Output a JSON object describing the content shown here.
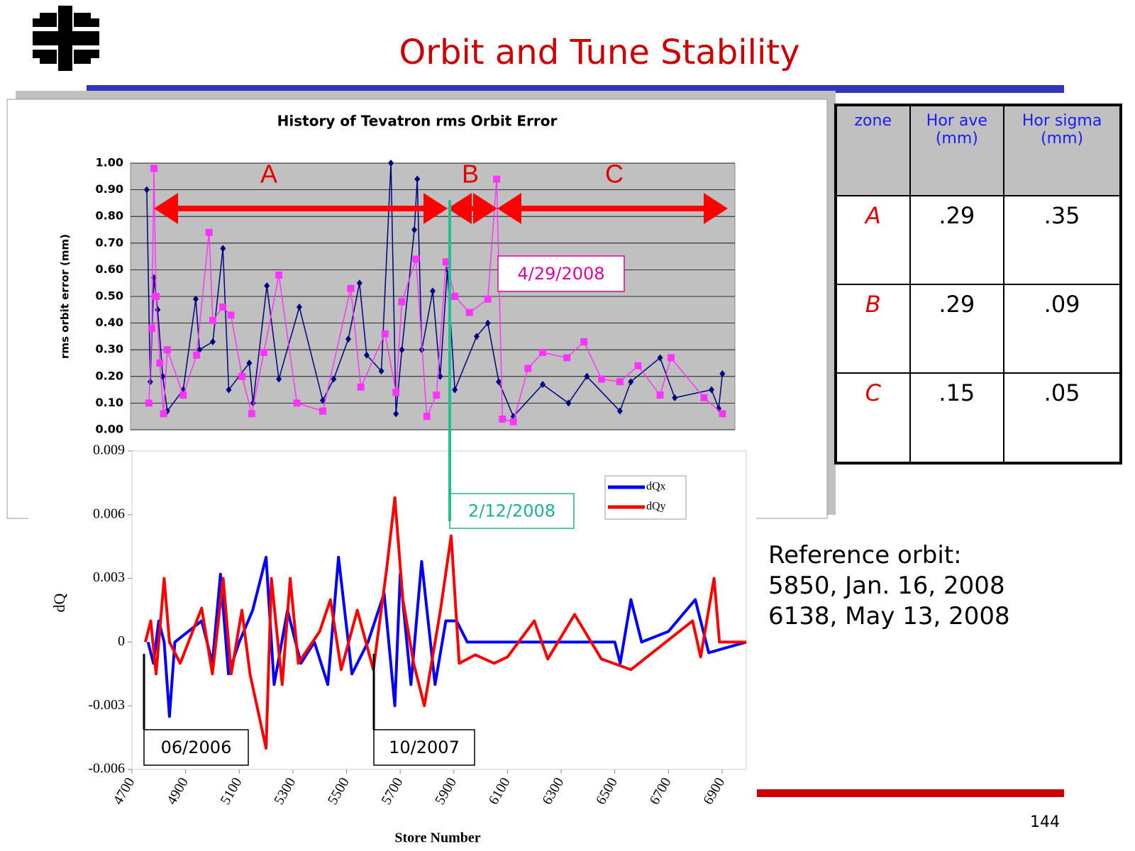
{
  "slide": {
    "title": "Orbit and Tune Stability",
    "page_number": "144"
  },
  "table": {
    "header": [
      "zone",
      "Hor ave (mm)",
      "Hor sigma (mm)"
    ],
    "rows": [
      [
        "A",
        ".29",
        ".35"
      ],
      [
        "B",
        ".29",
        ".09"
      ],
      [
        "C",
        ".15",
        ".05"
      ]
    ]
  },
  "reference": [
    "Reference orbit:",
    "5850, Jan. 16, 2008",
    "6138, May 13, 2008"
  ],
  "chart_data": [
    {
      "type": "line",
      "title": "History of Tevatron rms Orbit Error",
      "y_label": "rms orbit error (mm)",
      "xlim": [
        4700,
        6970
      ],
      "ylim": [
        0,
        1
      ],
      "yticks": [
        {
          "value": 0,
          "label": "0.00"
        },
        {
          "value": 0.1,
          "label": "0.10"
        },
        {
          "value": 0.2,
          "label": "0.20"
        },
        {
          "value": 0.3,
          "label": "0.30"
        },
        {
          "value": 0.4,
          "label": "0.40"
        },
        {
          "value": 0.5,
          "label": "0.50"
        },
        {
          "value": 0.6,
          "label": "0.60"
        },
        {
          "value": 0.7,
          "label": "0.70"
        },
        {
          "value": 0.8,
          "label": "0.80"
        },
        {
          "value": 0.9,
          "label": "0.90"
        },
        {
          "value": 1,
          "label": "1.00"
        }
      ],
      "grid": true,
      "annotations": [
        "A",
        "B",
        "C",
        "4/29/2008"
      ],
      "series": [
        {
          "color": "#000080",
          "marker": "diamond",
          "x": [
            4761,
            4774,
            4788,
            4802,
            4821,
            4838,
            4898,
            4945,
            4959,
            5009,
            5047,
            5069,
            5146,
            5160,
            5212,
            5257,
            5334,
            5422,
            5463,
            5518,
            5560,
            5587,
            5642,
            5678,
            5697,
            5719,
            5766,
            5777,
            5794,
            5835,
            5863,
            5890,
            5918,
            6000,
            6042,
            6083,
            6138,
            6248,
            6345,
            6414,
            6538,
            6579,
            6689,
            6744,
            6882,
            6909,
            6923
          ],
          "values": [
            0.9,
            0.18,
            0.57,
            0.45,
            0.2,
            0.07,
            0.15,
            0.49,
            0.3,
            0.33,
            0.68,
            0.15,
            0.25,
            0.1,
            0.54,
            0.19,
            0.46,
            0.11,
            0.19,
            0.34,
            0.55,
            0.28,
            0.22,
            1.0,
            0.06,
            0.3,
            0.75,
            0.94,
            0.3,
            0.52,
            0.2,
            0.6,
            0.15,
            0.35,
            0.4,
            0.18,
            0.05,
            0.17,
            0.1,
            0.2,
            0.07,
            0.18,
            0.27,
            0.12,
            0.15,
            0.08,
            0.21
          ]
        },
        {
          "color": "#ff33ff",
          "marker": "square",
          "x": [
            4769,
            4780,
            4788,
            4796,
            4810,
            4824,
            4838,
            4898,
            4948,
            4995,
            5009,
            5047,
            5077,
            5119,
            5155,
            5201,
            5257,
            5325,
            5422,
            5527,
            5565,
            5656,
            5697,
            5719,
            5772,
            5813,
            5849,
            5885,
            5918,
            5973,
            6042,
            6075,
            6097,
            6138,
            6193,
            6248,
            6339,
            6403,
            6469,
            6538,
            6606,
            6689,
            6730,
            6854,
            6923
          ],
          "values": [
            0.1,
            0.38,
            0.98,
            0.5,
            0.25,
            0.06,
            0.3,
            0.13,
            0.28,
            0.74,
            0.41,
            0.46,
            0.43,
            0.2,
            0.06,
            0.29,
            0.58,
            0.1,
            0.07,
            0.53,
            0.16,
            0.36,
            0.14,
            0.48,
            0.64,
            0.05,
            0.13,
            0.63,
            0.5,
            0.44,
            0.49,
            0.94,
            0.04,
            0.03,
            0.23,
            0.29,
            0.27,
            0.33,
            0.19,
            0.18,
            0.24,
            0.13,
            0.27,
            0.12,
            0.06
          ]
        }
      ]
    },
    {
      "type": "line",
      "x_label": "Store Number",
      "y_label": "dQ",
      "xlim": [
        4700,
        6990
      ],
      "xticks": [
        4700,
        4900,
        5100,
        5300,
        5500,
        5700,
        5900,
        6100,
        6300,
        6500,
        6700,
        6900
      ],
      "ylim": [
        -0.006,
        0.009
      ],
      "yticks": [
        -0.006,
        -0.003,
        0,
        0.003,
        0.006,
        0.009
      ],
      "legend": "upper right",
      "annotations": [
        "2/12/2008",
        "06/2006",
        "10/2007"
      ],
      "series": [
        {
          "name": "dQx",
          "color": "#0000ff",
          "x": [
            4760,
            4780,
            4800,
            4820,
            4840,
            4860,
            4960,
            5000,
            5030,
            5060,
            5100,
            5150,
            5200,
            5230,
            5280,
            5330,
            5380,
            5430,
            5470,
            5520,
            5580,
            5640,
            5680,
            5700,
            5740,
            5780,
            5830,
            5870,
            5910,
            5950,
            6000,
            6050,
            6500,
            6520,
            6560,
            6600,
            6700,
            6800,
            6850,
            6990
          ],
          "values": [
            0,
            -0.001,
            0.001,
            0,
            -0.0035,
            0,
            0.001,
            -0.001,
            0.0032,
            -0.0015,
            0,
            0.0015,
            0.004,
            -0.002,
            0.0015,
            -0.001,
            0,
            -0.002,
            0.004,
            -0.0015,
            0,
            0.0023,
            -0.003,
            0.0032,
            -0.002,
            0.0038,
            -0.002,
            0.001,
            0.001,
            0,
            0,
            0,
            0,
            -0.001,
            0.002,
            0,
            0.0005,
            0.002,
            -0.0005,
            0
          ]
        },
        {
          "name": "dQy",
          "color": "#ff0000",
          "x": [
            4750,
            4770,
            4790,
            4820,
            4840,
            4880,
            4960,
            5000,
            5040,
            5070,
            5110,
            5140,
            5200,
            5220,
            5260,
            5290,
            5320,
            5400,
            5440,
            5480,
            5540,
            5600,
            5650,
            5680,
            5710,
            5750,
            5790,
            5850,
            5890,
            5920,
            5980,
            6050,
            6100,
            6200,
            6250,
            6350,
            6450,
            6560,
            6790,
            6820,
            6870,
            6890,
            6990
          ],
          "values": [
            0,
            0.001,
            -0.0015,
            0.003,
            0,
            -0.001,
            0.0016,
            -0.0015,
            0.003,
            -0.0015,
            0.0015,
            -0.0015,
            -0.005,
            0.003,
            -0.002,
            0.003,
            -0.001,
            0.0005,
            0.002,
            -0.0013,
            0.0015,
            -0.0013,
            0.0035,
            0.0068,
            0.002,
            -0.001,
            -0.003,
            0.0015,
            0.005,
            -0.001,
            -0.0006,
            -0.001,
            -0.0007,
            0.001,
            -0.0008,
            0.0013,
            -0.0008,
            -0.0013,
            0.001,
            -0.0007,
            0.003,
            0,
            0
          ]
        }
      ]
    }
  ]
}
